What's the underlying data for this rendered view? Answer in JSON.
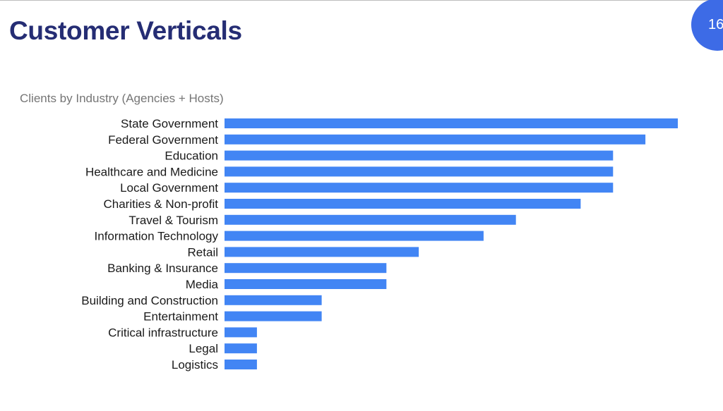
{
  "slide": {
    "title": "Customer Verticals",
    "page_number": "16"
  },
  "colors": {
    "title": "#252d74",
    "bar": "#4285f4",
    "badge": "#3d6be6",
    "chart_title": "#757575"
  },
  "chart_data": {
    "type": "bar",
    "orientation": "horizontal",
    "title": "Clients by Industry (Agencies + Hosts)",
    "xlabel": "",
    "ylabel": "",
    "grid": false,
    "legend": "none",
    "axis_ticks_shown": false,
    "value_unit": "relative (no axis scale shown)",
    "categories": [
      "State Government",
      "Federal Government",
      "Education",
      "Healthcare and Medicine",
      "Local Government",
      "Charities & Non-profit",
      "Travel & Tourism",
      "Information Technology",
      "Retail",
      "Banking & Insurance",
      "Media",
      "Building and Construction",
      "Entertainment",
      "Critical infrastructure",
      "Legal",
      "Logistics"
    ],
    "values": [
      14,
      13,
      12,
      12,
      12,
      11,
      9,
      8,
      6,
      5,
      5,
      3,
      3,
      1,
      1,
      1
    ],
    "xlim": [
      0,
      14
    ]
  }
}
